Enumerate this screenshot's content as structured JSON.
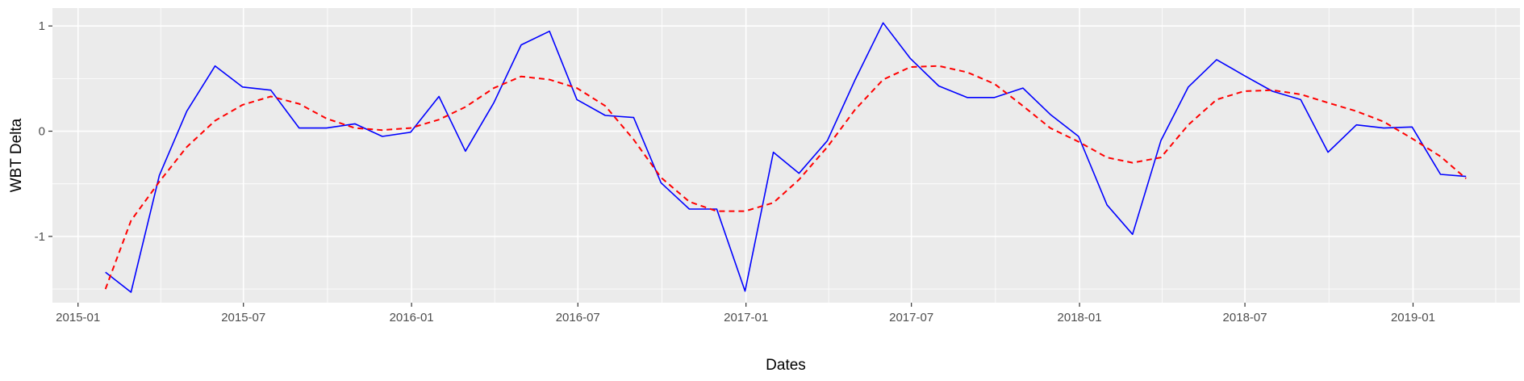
{
  "chart_data": {
    "type": "line",
    "xlabel": "Dates",
    "ylabel": "WBT Delta",
    "x_ticks": [
      "2015-01",
      "2015-07",
      "2016-01",
      "2016-07",
      "2017-01",
      "2017-07",
      "2018-01",
      "2018-07",
      "2019-01"
    ],
    "y_ticks": [
      "1",
      "0",
      "-1"
    ],
    "xlim": [
      "2014-12-04",
      "2019-04-28"
    ],
    "ylim": [
      -1.63,
      1.17
    ],
    "grid": true,
    "legend": "none",
    "colors": {
      "panel": "#ebebeb",
      "grid": "#ffffff",
      "series_line": "#0000ff",
      "smooth_line": "#ff0000"
    },
    "series": [
      {
        "style": "solid",
        "color": "#0000ff",
        "points": [
          [
            "2015-01-31",
            -1.34
          ],
          [
            "2015-02-28",
            -1.53
          ],
          [
            "2015-03-31",
            -0.42
          ],
          [
            "2015-04-30",
            0.19
          ],
          [
            "2015-05-31",
            0.62
          ],
          [
            "2015-06-30",
            0.42
          ],
          [
            "2015-07-31",
            0.39
          ],
          [
            "2015-08-31",
            0.03
          ],
          [
            "2015-09-30",
            0.03
          ],
          [
            "2015-10-31",
            0.07
          ],
          [
            "2015-11-30",
            -0.05
          ],
          [
            "2015-12-31",
            -0.01
          ],
          [
            "2016-01-31",
            0.33
          ],
          [
            "2016-02-29",
            -0.19
          ],
          [
            "2016-03-31",
            0.27
          ],
          [
            "2016-04-30",
            0.82
          ],
          [
            "2016-05-31",
            0.95
          ],
          [
            "2016-06-30",
            0.3
          ],
          [
            "2016-07-31",
            0.15
          ],
          [
            "2016-08-31",
            0.13
          ],
          [
            "2016-09-30",
            -0.49
          ],
          [
            "2016-10-31",
            -0.74
          ],
          [
            "2016-11-30",
            -0.74
          ],
          [
            "2016-12-31",
            -1.52
          ],
          [
            "2017-01-31",
            -0.2
          ],
          [
            "2017-02-28",
            -0.4
          ],
          [
            "2017-03-31",
            -0.09
          ],
          [
            "2017-04-30",
            0.48
          ],
          [
            "2017-05-31",
            1.03
          ],
          [
            "2017-06-30",
            0.69
          ],
          [
            "2017-07-31",
            0.43
          ],
          [
            "2017-08-31",
            0.32
          ],
          [
            "2017-09-30",
            0.32
          ],
          [
            "2017-10-31",
            0.41
          ],
          [
            "2017-11-30",
            0.16
          ],
          [
            "2017-12-31",
            -0.05
          ],
          [
            "2018-01-31",
            -0.7
          ],
          [
            "2018-02-28",
            -0.98
          ],
          [
            "2018-03-31",
            -0.09
          ],
          [
            "2018-04-30",
            0.42
          ],
          [
            "2018-05-31",
            0.68
          ],
          [
            "2018-06-30",
            0.53
          ],
          [
            "2018-07-31",
            0.38
          ],
          [
            "2018-08-31",
            0.3
          ],
          [
            "2018-09-30",
            -0.2
          ],
          [
            "2018-10-31",
            0.06
          ],
          [
            "2018-11-30",
            0.03
          ],
          [
            "2018-12-31",
            0.04
          ],
          [
            "2019-01-31",
            -0.41
          ],
          [
            "2019-02-28",
            -0.43
          ]
        ]
      },
      {
        "style": "dashed",
        "color": "#ff0000",
        "points": [
          [
            "2015-01-31",
            -1.5
          ],
          [
            "2015-02-28",
            -0.85
          ],
          [
            "2015-03-31",
            -0.48
          ],
          [
            "2015-04-30",
            -0.15
          ],
          [
            "2015-05-31",
            0.1
          ],
          [
            "2015-06-30",
            0.25
          ],
          [
            "2015-07-31",
            0.33
          ],
          [
            "2015-08-31",
            0.26
          ],
          [
            "2015-09-30",
            0.12
          ],
          [
            "2015-10-31",
            0.03
          ],
          [
            "2015-11-30",
            0.01
          ],
          [
            "2015-12-31",
            0.03
          ],
          [
            "2016-01-31",
            0.11
          ],
          [
            "2016-02-29",
            0.23
          ],
          [
            "2016-03-31",
            0.41
          ],
          [
            "2016-04-30",
            0.52
          ],
          [
            "2016-05-31",
            0.49
          ],
          [
            "2016-06-30",
            0.41
          ],
          [
            "2016-07-31",
            0.24
          ],
          [
            "2016-08-31",
            -0.08
          ],
          [
            "2016-09-30",
            -0.44
          ],
          [
            "2016-10-31",
            -0.67
          ],
          [
            "2016-11-30",
            -0.76
          ],
          [
            "2016-12-31",
            -0.76
          ],
          [
            "2017-01-31",
            -0.68
          ],
          [
            "2017-02-28",
            -0.46
          ],
          [
            "2017-03-31",
            -0.15
          ],
          [
            "2017-04-30",
            0.2
          ],
          [
            "2017-05-31",
            0.49
          ],
          [
            "2017-06-30",
            0.61
          ],
          [
            "2017-07-31",
            0.62
          ],
          [
            "2017-08-31",
            0.56
          ],
          [
            "2017-09-30",
            0.45
          ],
          [
            "2017-10-31",
            0.24
          ],
          [
            "2017-11-30",
            0.03
          ],
          [
            "2017-12-31",
            -0.1
          ],
          [
            "2018-01-31",
            -0.25
          ],
          [
            "2018-02-28",
            -0.3
          ],
          [
            "2018-03-31",
            -0.25
          ],
          [
            "2018-04-30",
            0.06
          ],
          [
            "2018-05-31",
            0.3
          ],
          [
            "2018-06-30",
            0.38
          ],
          [
            "2018-07-31",
            0.39
          ],
          [
            "2018-08-31",
            0.35
          ],
          [
            "2018-09-30",
            0.27
          ],
          [
            "2018-10-31",
            0.19
          ],
          [
            "2018-11-30",
            0.09
          ],
          [
            "2018-12-31",
            -0.07
          ],
          [
            "2019-01-31",
            -0.24
          ],
          [
            "2019-02-28",
            -0.45
          ]
        ]
      }
    ]
  }
}
